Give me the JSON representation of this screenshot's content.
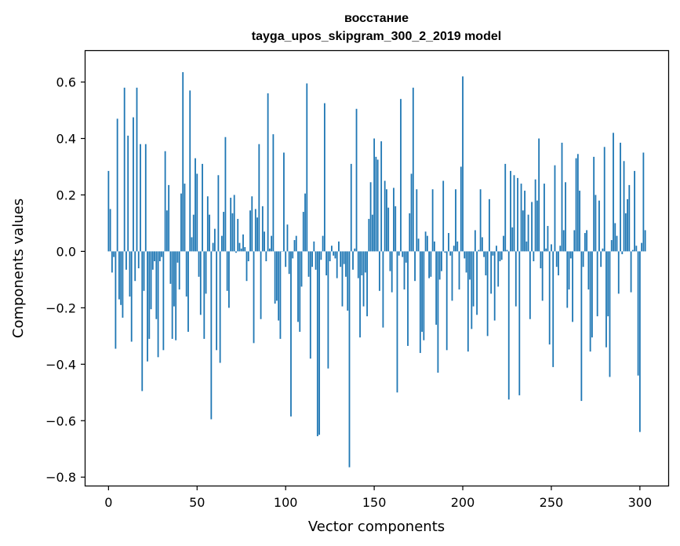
{
  "chart_data": {
    "type": "bar",
    "title": "восстание",
    "subtitle": "tayga_upos_skipgram_300_2_2019 model",
    "xlabel": "Vector components",
    "ylabel": "Components values",
    "xlim": [
      -13,
      316
    ],
    "ylim": [
      -0.83,
      0.71
    ],
    "xticks": [
      0,
      50,
      100,
      150,
      200,
      250,
      300
    ],
    "yticks": [
      -0.8,
      -0.6,
      -0.4,
      -0.2,
      0.0,
      0.2,
      0.4,
      0.6
    ],
    "ytick_labels": [
      "−0.8",
      "−0.6",
      "−0.4",
      "−0.2",
      "0.0",
      "0.2",
      "0.4",
      "0.6"
    ],
    "grid": false,
    "color": "#1f77b4",
    "x_start": 0,
    "values": [
      0.285,
      0.15,
      -0.075,
      -0.02,
      -0.345,
      0.47,
      -0.17,
      -0.19,
      -0.235,
      0.58,
      -0.065,
      0.41,
      -0.16,
      -0.32,
      0.475,
      -0.105,
      0.58,
      -0.06,
      0.38,
      -0.495,
      -0.14,
      0.38,
      -0.39,
      -0.31,
      -0.205,
      -0.065,
      -0.035,
      -0.24,
      -0.375,
      -0.035,
      -0.02,
      -0.35,
      0.355,
      0.145,
      0.235,
      -0.115,
      -0.31,
      -0.195,
      -0.315,
      -0.04,
      -0.135,
      0.205,
      0.635,
      0.24,
      -0.16,
      -0.285,
      0.57,
      0.05,
      0.13,
      0.33,
      0.275,
      -0.09,
      -0.225,
      0.31,
      -0.31,
      -0.15,
      0.195,
      0.13,
      -0.595,
      0.03,
      0.08,
      -0.35,
      0.27,
      -0.395,
      0.055,
      0.14,
      0.405,
      -0.14,
      -0.2,
      0.19,
      0.135,
      0.2,
      -0.005,
      0.115,
      0.03,
      0.01,
      0.06,
      0.015,
      -0.105,
      -0.035,
      0.145,
      0.195,
      -0.325,
      0.15,
      0.12,
      0.38,
      -0.24,
      0.16,
      0.07,
      -0.035,
      0.56,
      0.01,
      0.055,
      0.415,
      -0.185,
      -0.175,
      -0.245,
      -0.31,
      0.0,
      0.35,
      -0.055,
      0.095,
      -0.08,
      -0.585,
      -0.025,
      0.04,
      0.055,
      -0.25,
      -0.285,
      -0.125,
      0.14,
      0.205,
      0.595,
      -0.09,
      -0.38,
      -0.055,
      0.035,
      -0.065,
      -0.655,
      -0.65,
      -0.03,
      0.055,
      0.525,
      -0.085,
      -0.415,
      -0.035,
      0.02,
      -0.015,
      -0.025,
      -0.095,
      0.035,
      -0.055,
      -0.195,
      -0.045,
      -0.09,
      -0.21,
      -0.765,
      0.31,
      -0.065,
      0.01,
      0.505,
      -0.095,
      -0.305,
      -0.085,
      -0.195,
      -0.075,
      -0.23,
      0.115,
      0.245,
      0.13,
      0.4,
      0.335,
      0.325,
      -0.14,
      0.39,
      -0.27,
      0.25,
      0.22,
      0.155,
      -0.07,
      -0.145,
      0.225,
      0.16,
      -0.5,
      -0.015,
      0.54,
      -0.02,
      -0.135,
      -0.04,
      -0.335,
      0.135,
      0.275,
      0.58,
      -0.105,
      0.22,
      0.045,
      -0.36,
      -0.285,
      -0.315,
      0.07,
      0.055,
      -0.095,
      -0.09,
      0.22,
      0.035,
      -0.26,
      -0.43,
      -0.1,
      -0.07,
      0.25,
      -0.005,
      -0.35,
      0.065,
      -0.015,
      -0.175,
      0.02,
      0.22,
      0.035,
      -0.135,
      0.3,
      0.62,
      -0.025,
      -0.075,
      -0.355,
      -0.1,
      -0.275,
      -0.195,
      0.075,
      -0.225,
      0.005,
      0.22,
      0.05,
      -0.02,
      -0.085,
      -0.3,
      0.185,
      -0.15,
      -0.015,
      -0.245,
      0.02,
      -0.125,
      -0.035,
      -0.03,
      0.055,
      0.31,
      0.005,
      -0.525,
      0.285,
      0.085,
      0.27,
      -0.195,
      0.26,
      -0.51,
      0.24,
      0.145,
      0.215,
      0.035,
      0.13,
      -0.24,
      0.175,
      -0.035,
      0.255,
      0.18,
      0.4,
      -0.06,
      -0.175,
      0.24,
      0.01,
      0.09,
      -0.33,
      0.025,
      -0.41,
      0.305,
      -0.055,
      -0.085,
      0.02,
      0.385,
      0.075,
      0.245,
      -0.2,
      -0.135,
      -0.025,
      -0.25,
      0.075,
      0.33,
      0.345,
      0.215,
      -0.53,
      -0.055,
      0.065,
      0.075,
      -0.135,
      -0.355,
      -0.305,
      0.335,
      0.2,
      -0.23,
      0.18,
      -0.055,
      0.01,
      0.37,
      -0.34,
      -0.23,
      -0.445,
      0.04,
      0.42,
      0.1,
      0.055,
      -0.15,
      0.385,
      -0.01,
      0.32,
      0.135,
      0.185,
      0.235,
      -0.145,
      0.005,
      0.285,
      0.02,
      -0.44,
      -0.64,
      0.03,
      0.35,
      0.075
    ]
  }
}
